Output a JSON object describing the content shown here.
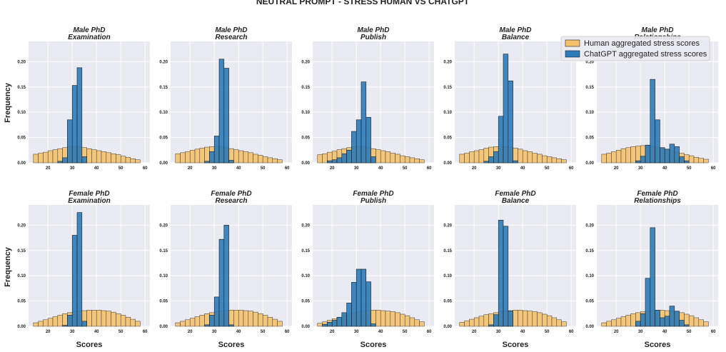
{
  "figure": {
    "title": "NEUTRAL PROMPT - STRESS HUMAN VS CHATGPT",
    "xlabel": "Scores",
    "ylabel": "Frequency",
    "legend": {
      "position": "top-right",
      "entries": [
        {
          "label": "Human aggregated stress scores",
          "color": "#f5c26b"
        },
        {
          "label": "ChatGPT aggregated stress scores",
          "color": "#2b7bba"
        }
      ]
    },
    "colors": {
      "human": "#f5c26b",
      "chatgpt": "#2b7bba",
      "plot_bg": "#eaeaf2",
      "grid": "#ffffff"
    }
  },
  "chart_data": [
    {
      "type": "bar",
      "title": "Male PhD\nExamination",
      "xlim": [
        12,
        62
      ],
      "ylim": [
        0,
        0.24
      ],
      "xticks": [
        20,
        30,
        40,
        50,
        60
      ],
      "yticks": [
        0.0,
        0.05,
        0.1,
        0.15,
        0.2
      ],
      "bin_edges": [
        14,
        16,
        18,
        20,
        22,
        24,
        26,
        28,
        30,
        32,
        34,
        36,
        38,
        40,
        42,
        44,
        46,
        48,
        50,
        52,
        54,
        56,
        58
      ],
      "human": [
        0.017,
        0.019,
        0.021,
        0.024,
        0.026,
        0.028,
        0.03,
        0.032,
        0.033,
        0.032,
        0.03,
        0.028,
        0.026,
        0.024,
        0.022,
        0.02,
        0.018,
        0.016,
        0.013,
        0.011,
        0.008,
        0.006
      ],
      "chatgpt": [
        0,
        0,
        0,
        0,
        0,
        0.003,
        0.01,
        0.085,
        0.153,
        0.188,
        0.012,
        0,
        0,
        0,
        0,
        0,
        0,
        0,
        0,
        0,
        0,
        0
      ]
    },
    {
      "type": "bar",
      "title": "Male PhD\nResearch",
      "xlim": [
        12,
        62
      ],
      "ylim": [
        0,
        0.24
      ],
      "xticks": [
        20,
        30,
        40,
        50,
        60
      ],
      "yticks": [
        0.0,
        0.05,
        0.1,
        0.15,
        0.2
      ],
      "bin_edges": [
        14,
        16,
        18,
        20,
        22,
        24,
        26,
        28,
        30,
        32,
        34,
        36,
        38,
        40,
        42,
        44,
        46,
        48,
        50,
        52,
        54,
        56,
        58
      ],
      "human": [
        0.018,
        0.02,
        0.022,
        0.025,
        0.027,
        0.029,
        0.031,
        0.032,
        0.033,
        0.032,
        0.03,
        0.028,
        0.026,
        0.024,
        0.022,
        0.02,
        0.017,
        0.015,
        0.012,
        0.01,
        0.008,
        0.006
      ],
      "chatgpt": [
        0,
        0,
        0,
        0,
        0,
        0,
        0.003,
        0.022,
        0.053,
        0.205,
        0.187,
        0.005,
        0,
        0,
        0,
        0,
        0,
        0,
        0,
        0,
        0,
        0
      ]
    },
    {
      "type": "bar",
      "title": "Male PhD\nPublish",
      "xlim": [
        12,
        62
      ],
      "ylim": [
        0,
        0.24
      ],
      "xticks": [
        20,
        30,
        40,
        50,
        60
      ],
      "yticks": [
        0.0,
        0.05,
        0.1,
        0.15,
        0.2
      ],
      "bin_edges": [
        14,
        16,
        18,
        20,
        22,
        24,
        26,
        28,
        30,
        32,
        34,
        36,
        38,
        40,
        42,
        44,
        46,
        48,
        50,
        52,
        54,
        56,
        58
      ],
      "human": [
        0.016,
        0.018,
        0.021,
        0.023,
        0.026,
        0.028,
        0.03,
        0.032,
        0.033,
        0.032,
        0.03,
        0.028,
        0.026,
        0.024,
        0.022,
        0.019,
        0.017,
        0.014,
        0.012,
        0.01,
        0.008,
        0.006
      ],
      "chatgpt": [
        0,
        0,
        0.004,
        0.006,
        0.01,
        0.018,
        0.025,
        0.062,
        0.085,
        0.16,
        0.09,
        0.012,
        0,
        0,
        0,
        0,
        0,
        0,
        0,
        0,
        0,
        0
      ]
    },
    {
      "type": "bar",
      "title": "Male PhD\nBalance",
      "xlim": [
        12,
        62
      ],
      "ylim": [
        0,
        0.24
      ],
      "xticks": [
        20,
        30,
        40,
        50,
        60
      ],
      "yticks": [
        0.0,
        0.05,
        0.1,
        0.15,
        0.2
      ],
      "bin_edges": [
        14,
        16,
        18,
        20,
        22,
        24,
        26,
        28,
        30,
        32,
        34,
        36,
        38,
        40,
        42,
        44,
        46,
        48,
        50,
        52,
        54,
        56,
        58
      ],
      "human": [
        0.017,
        0.019,
        0.022,
        0.024,
        0.026,
        0.029,
        0.031,
        0.032,
        0.033,
        0.032,
        0.031,
        0.029,
        0.027,
        0.024,
        0.022,
        0.019,
        0.017,
        0.014,
        0.012,
        0.01,
        0.008,
        0.006
      ],
      "chatgpt": [
        0,
        0,
        0,
        0,
        0,
        0.003,
        0.012,
        0.022,
        0.092,
        0.215,
        0.162,
        0.004,
        0,
        0,
        0,
        0,
        0,
        0,
        0,
        0,
        0,
        0
      ]
    },
    {
      "type": "bar",
      "title": "Male PhD\nRelationships",
      "xlim": [
        12,
        62
      ],
      "ylim": [
        0,
        0.24
      ],
      "xticks": [
        20,
        30,
        40,
        50,
        60
      ],
      "yticks": [
        0.0,
        0.05,
        0.1,
        0.15,
        0.2
      ],
      "bin_edges": [
        14,
        16,
        18,
        20,
        22,
        24,
        26,
        28,
        30,
        32,
        34,
        36,
        38,
        40,
        42,
        44,
        46,
        48,
        50,
        52,
        54,
        56,
        58
      ],
      "human": [
        0.017,
        0.019,
        0.022,
        0.025,
        0.028,
        0.03,
        0.032,
        0.033,
        0.034,
        0.034,
        0.033,
        0.031,
        0.029,
        0.027,
        0.024,
        0.021,
        0.019,
        0.016,
        0.014,
        0.011,
        0.009,
        0.007
      ],
      "chatgpt": [
        0,
        0,
        0,
        0,
        0,
        0,
        0,
        0.004,
        0.013,
        0.035,
        0.165,
        0.085,
        0.03,
        0.027,
        0.037,
        0.032,
        0.012,
        0.004,
        0,
        0,
        0,
        0
      ]
    },
    {
      "type": "bar",
      "title": "Female PhD\nExamination",
      "xlim": [
        12,
        62
      ],
      "ylim": [
        0,
        0.24
      ],
      "xticks": [
        20,
        30,
        40,
        50,
        60
      ],
      "yticks": [
        0.0,
        0.05,
        0.1,
        0.15,
        0.2
      ],
      "bin_edges": [
        14,
        16,
        18,
        20,
        22,
        24,
        26,
        28,
        30,
        32,
        34,
        36,
        38,
        40,
        42,
        44,
        46,
        48,
        50,
        52,
        54,
        56,
        58
      ],
      "human": [
        0.007,
        0.01,
        0.013,
        0.016,
        0.019,
        0.022,
        0.025,
        0.027,
        0.029,
        0.03,
        0.031,
        0.032,
        0.032,
        0.032,
        0.031,
        0.03,
        0.028,
        0.025,
        0.022,
        0.018,
        0.014,
        0.01
      ],
      "chatgpt": [
        0,
        0,
        0,
        0,
        0,
        0,
        0.002,
        0.022,
        0.18,
        0.225,
        0.01,
        0,
        0,
        0,
        0,
        0,
        0,
        0,
        0,
        0,
        0,
        0
      ]
    },
    {
      "type": "bar",
      "title": "Female PhD\nResearch",
      "xlim": [
        12,
        62
      ],
      "ylim": [
        0,
        0.24
      ],
      "xticks": [
        20,
        30,
        40,
        50,
        60
      ],
      "yticks": [
        0.0,
        0.05,
        0.1,
        0.15,
        0.2
      ],
      "bin_edges": [
        14,
        16,
        18,
        20,
        22,
        24,
        26,
        28,
        30,
        32,
        34,
        36,
        38,
        40,
        42,
        44,
        46,
        48,
        50,
        52,
        54,
        56,
        58
      ],
      "human": [
        0.007,
        0.01,
        0.013,
        0.016,
        0.019,
        0.022,
        0.025,
        0.027,
        0.029,
        0.03,
        0.031,
        0.032,
        0.032,
        0.032,
        0.031,
        0.03,
        0.028,
        0.025,
        0.022,
        0.018,
        0.014,
        0.01
      ],
      "chatgpt": [
        0,
        0,
        0,
        0,
        0,
        0,
        0.003,
        0.022,
        0.058,
        0.172,
        0.2,
        0.003,
        0,
        0,
        0,
        0,
        0,
        0,
        0,
        0,
        0,
        0
      ]
    },
    {
      "type": "bar",
      "title": "Female PhD\nPublish",
      "xlim": [
        12,
        62
      ],
      "ylim": [
        0,
        0.24
      ],
      "xticks": [
        20,
        30,
        40,
        50,
        60
      ],
      "yticks": [
        0.0,
        0.05,
        0.1,
        0.15,
        0.2
      ],
      "bin_edges": [
        14,
        16,
        18,
        20,
        22,
        24,
        26,
        28,
        30,
        32,
        34,
        36,
        38,
        40,
        42,
        44,
        46,
        48,
        50,
        52,
        54,
        56,
        58
      ],
      "human": [
        0.006,
        0.009,
        0.012,
        0.015,
        0.018,
        0.021,
        0.024,
        0.026,
        0.028,
        0.03,
        0.031,
        0.032,
        0.032,
        0.031,
        0.03,
        0.029,
        0.027,
        0.024,
        0.021,
        0.017,
        0.013,
        0.009
      ],
      "chatgpt": [
        0,
        0.004,
        0.008,
        0.012,
        0.018,
        0.027,
        0.046,
        0.087,
        0.113,
        0.113,
        0.088,
        0.005,
        0,
        0,
        0,
        0,
        0,
        0,
        0,
        0,
        0,
        0
      ]
    },
    {
      "type": "bar",
      "title": "Female PhD\nBalance",
      "xlim": [
        12,
        62
      ],
      "ylim": [
        0,
        0.24
      ],
      "xticks": [
        20,
        30,
        40,
        50,
        60
      ],
      "yticks": [
        0.0,
        0.05,
        0.1,
        0.15,
        0.2
      ],
      "bin_edges": [
        14,
        16,
        18,
        20,
        22,
        24,
        26,
        28,
        30,
        32,
        34,
        36,
        38,
        40,
        42,
        44,
        46,
        48,
        50,
        52,
        54,
        56,
        58
      ],
      "human": [
        0.008,
        0.011,
        0.014,
        0.017,
        0.02,
        0.023,
        0.025,
        0.027,
        0.029,
        0.03,
        0.031,
        0.032,
        0.032,
        0.031,
        0.03,
        0.029,
        0.027,
        0.024,
        0.021,
        0.017,
        0.013,
        0.009
      ],
      "chatgpt": [
        0,
        0,
        0,
        0,
        0,
        0,
        0.003,
        0.023,
        0.21,
        0.198,
        0.03,
        0,
        0,
        0,
        0,
        0,
        0,
        0,
        0,
        0,
        0,
        0
      ]
    },
    {
      "type": "bar",
      "title": "Female PhD\nRelationships",
      "xlim": [
        12,
        62
      ],
      "ylim": [
        0,
        0.24
      ],
      "xticks": [
        20,
        30,
        40,
        50,
        60
      ],
      "yticks": [
        0.0,
        0.05,
        0.1,
        0.15,
        0.2
      ],
      "bin_edges": [
        14,
        16,
        18,
        20,
        22,
        24,
        26,
        28,
        30,
        32,
        34,
        36,
        38,
        40,
        42,
        44,
        46,
        48,
        50,
        52,
        54,
        56,
        58
      ],
      "human": [
        0.007,
        0.01,
        0.013,
        0.016,
        0.019,
        0.022,
        0.025,
        0.027,
        0.029,
        0.03,
        0.031,
        0.032,
        0.032,
        0.031,
        0.03,
        0.029,
        0.027,
        0.024,
        0.021,
        0.017,
        0.013,
        0.009
      ],
      "chatgpt": [
        0,
        0,
        0,
        0,
        0,
        0,
        0,
        0.01,
        0.025,
        0.095,
        0.195,
        0.032,
        0.017,
        0.02,
        0.04,
        0.03,
        0.012,
        0.003,
        0,
        0,
        0,
        0
      ]
    }
  ]
}
